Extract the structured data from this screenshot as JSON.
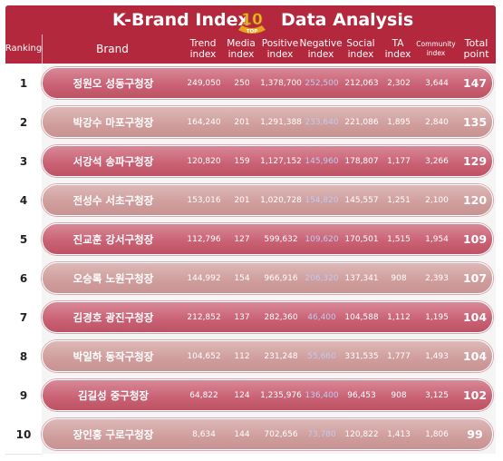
{
  "title": {
    "left": "K-Brand Index",
    "right": "Data Analysis",
    "badge_number": "10",
    "badge_text": "TOP"
  },
  "colors": {
    "header": "#b4283e",
    "row_odd": "#c96073",
    "row_even": "#cf9d9c",
    "negative_text": "#bfcaf2"
  },
  "chart_data": {
    "type": "table",
    "columns": [
      "Ranking",
      "Brand",
      "Trend\nindex",
      "Media\nindex",
      "Positive\nindex",
      "Negative\nindex",
      "Social\nindex",
      "TA\nindex",
      "Community\nindex",
      "Total\npoint"
    ],
    "rows": [
      [
        "1",
        "정원오 성동구청장",
        "249,050",
        "250",
        "1,378,700",
        "252,500",
        "212,063",
        "2,302",
        "3,644",
        "147"
      ],
      [
        "2",
        "박강수 마포구청장",
        "164,240",
        "201",
        "1,291,388",
        "233,640",
        "221,086",
        "1,895",
        "2,840",
        "135"
      ],
      [
        "3",
        "서강석 송파구청장",
        "120,820",
        "159",
        "1,127,152",
        "145,960",
        "178,807",
        "1,177",
        "3,266",
        "129"
      ],
      [
        "4",
        "전성수 서초구청장",
        "153,016",
        "201",
        "1,020,728",
        "154,820",
        "145,557",
        "1,251",
        "2,100",
        "120"
      ],
      [
        "5",
        "진교훈 강서구청장",
        "112,796",
        "127",
        "599,632",
        "109,620",
        "170,501",
        "1,515",
        "1,954",
        "109"
      ],
      [
        "6",
        "오승록 노원구청장",
        "144,992",
        "154",
        "966,916",
        "206,320",
        "137,341",
        "908",
        "2,393",
        "107"
      ],
      [
        "7",
        "김경호 광진구청장",
        "212,852",
        "137",
        "282,360",
        "46,400",
        "104,588",
        "1,112",
        "1,195",
        "104"
      ],
      [
        "8",
        "박일하 동작구청장",
        "104,652",
        "112",
        "231,248",
        "55,660",
        "331,535",
        "1,777",
        "1,493",
        "104"
      ],
      [
        "9",
        "김길성 중구청장",
        "64,822",
        "124",
        "1,235,976",
        "136,400",
        "96,453",
        "908",
        "3,125",
        "102"
      ],
      [
        "10",
        "장인홍 구로구청장",
        "8,634",
        "144",
        "702,656",
        "73,780",
        "120,822",
        "1,413",
        "1,806",
        "99"
      ]
    ]
  }
}
